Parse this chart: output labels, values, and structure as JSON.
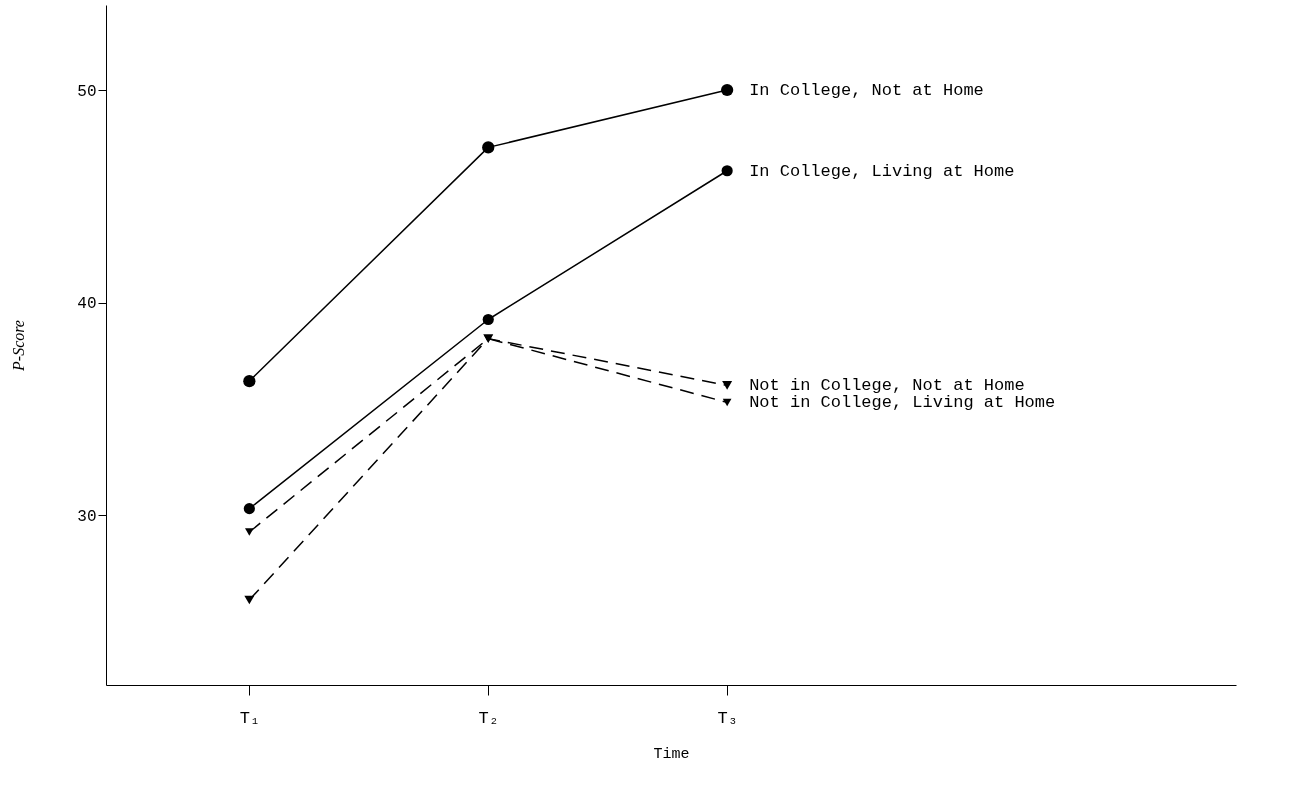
{
  "chart_data": {
    "type": "line",
    "xlabel": "Time",
    "ylabel": "P-Score",
    "categories": [
      "T₁",
      "T₂",
      "T₃"
    ],
    "ylim": [
      22,
      54
    ],
    "yticks": [
      30,
      40,
      50
    ],
    "grid": false,
    "series": [
      {
        "name": "In College, Not at Home",
        "color": "#000000",
        "marker": "circle",
        "line_style": "solid",
        "values": [
          36.3,
          47.3,
          50.0
        ]
      },
      {
        "name": "In College, Living at Home",
        "color": "#000000",
        "marker": "circle",
        "line_style": "solid",
        "values": [
          30.3,
          39.2,
          46.2
        ]
      },
      {
        "name": "Not in College, Not at Home",
        "color": "#000000",
        "marker": "triangle",
        "line_style": "dashed",
        "values": [
          26.0,
          38.3,
          36.1
        ]
      },
      {
        "name": "Not in College, Living at Home",
        "color": "#000000",
        "marker": "triangle",
        "line_style": "dashed",
        "values": [
          29.2,
          38.3,
          35.3
        ]
      }
    ]
  }
}
